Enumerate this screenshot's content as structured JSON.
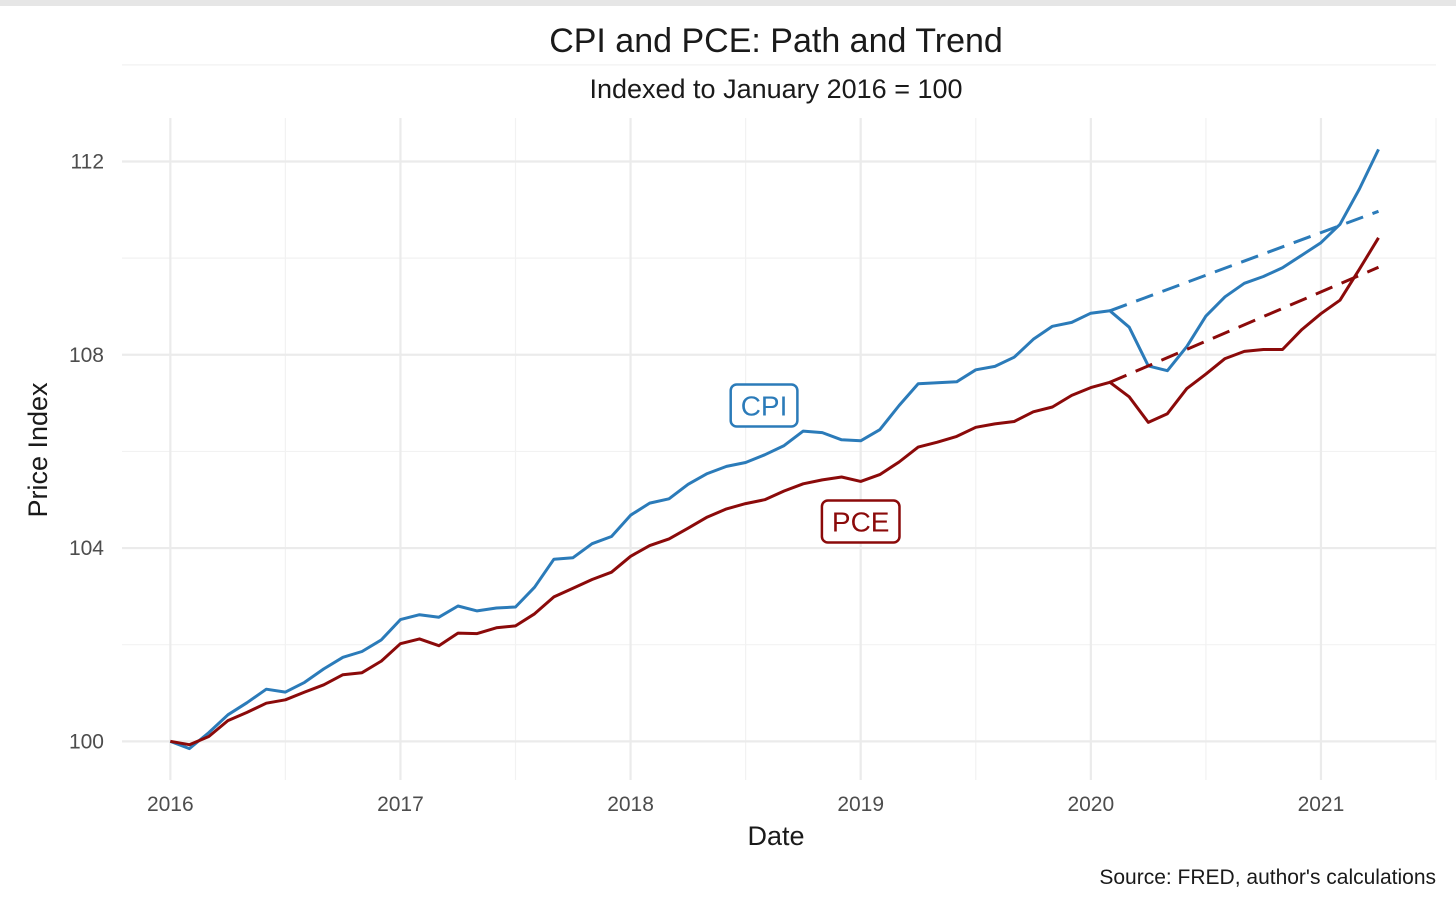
{
  "chart_data": {
    "type": "line",
    "title": "CPI and PCE: Path and Trend",
    "subtitle": "Indexed to January 2016 = 100",
    "xlabel": "Date",
    "ylabel": "Price Index",
    "caption": "Source: FRED, author's calculations",
    "xlim": [
      2015.79,
      2021.5
    ],
    "ylim": [
      99.2,
      112.9
    ],
    "x_ticks": [
      2016,
      2017,
      2018,
      2019,
      2020,
      2021
    ],
    "x_tick_labels": [
      "2016",
      "2017",
      "2018",
      "2019",
      "2020",
      "2021"
    ],
    "y_ticks": [
      100,
      104,
      108,
      112
    ],
    "y_tick_labels": [
      "100",
      "104",
      "108",
      "112"
    ],
    "grid": true,
    "series": [
      {
        "name": "CPI",
        "color": "#2b7bb9",
        "style": "solid",
        "label_at": [
          2018.58,
          106.95
        ],
        "x": [
          2016.0,
          2016.083,
          2016.167,
          2016.25,
          2016.333,
          2016.417,
          2016.5,
          2016.583,
          2016.667,
          2016.75,
          2016.833,
          2016.917,
          2017.0,
          2017.083,
          2017.167,
          2017.25,
          2017.333,
          2017.417,
          2017.5,
          2017.583,
          2017.667,
          2017.75,
          2017.833,
          2017.917,
          2018.0,
          2018.083,
          2018.167,
          2018.25,
          2018.333,
          2018.417,
          2018.5,
          2018.583,
          2018.667,
          2018.75,
          2018.833,
          2018.917,
          2019.0,
          2019.083,
          2019.167,
          2019.25,
          2019.333,
          2019.417,
          2019.5,
          2019.583,
          2019.667,
          2019.75,
          2019.833,
          2019.917,
          2020.0,
          2020.083,
          2020.167,
          2020.25,
          2020.333,
          2020.417,
          2020.5,
          2020.583,
          2020.667,
          2020.75,
          2020.833,
          2020.917,
          2021.0,
          2021.083,
          2021.167,
          2021.25
        ],
        "values": [
          100.0,
          99.85,
          100.18,
          100.55,
          100.8,
          101.08,
          101.02,
          101.22,
          101.5,
          101.74,
          101.86,
          102.1,
          102.52,
          102.62,
          102.57,
          102.8,
          102.7,
          102.76,
          102.78,
          103.19,
          103.77,
          103.8,
          104.09,
          104.24,
          104.68,
          104.93,
          105.02,
          105.32,
          105.54,
          105.69,
          105.77,
          105.93,
          106.12,
          106.42,
          106.39,
          106.24,
          106.22,
          106.45,
          106.95,
          107.4,
          107.42,
          107.44,
          107.69,
          107.76,
          107.95,
          108.32,
          108.59,
          108.67,
          108.86,
          108.91,
          108.57,
          107.77,
          107.67,
          108.17,
          108.8,
          109.2,
          109.48,
          109.62,
          109.8,
          110.06,
          110.32,
          110.7,
          111.43,
          112.25
        ]
      },
      {
        "name": "PCE",
        "color": "#8b0a0a",
        "style": "solid",
        "label_at": [
          2019.0,
          104.55
        ],
        "x": [
          2016.0,
          2016.083,
          2016.167,
          2016.25,
          2016.333,
          2016.417,
          2016.5,
          2016.583,
          2016.667,
          2016.75,
          2016.833,
          2016.917,
          2017.0,
          2017.083,
          2017.167,
          2017.25,
          2017.333,
          2017.417,
          2017.5,
          2017.583,
          2017.667,
          2017.75,
          2017.833,
          2017.917,
          2018.0,
          2018.083,
          2018.167,
          2018.25,
          2018.333,
          2018.417,
          2018.5,
          2018.583,
          2018.667,
          2018.75,
          2018.833,
          2018.917,
          2019.0,
          2019.083,
          2019.167,
          2019.25,
          2019.333,
          2019.417,
          2019.5,
          2019.583,
          2019.667,
          2019.75,
          2019.833,
          2019.917,
          2020.0,
          2020.083,
          2020.167,
          2020.25,
          2020.333,
          2020.417,
          2020.5,
          2020.583,
          2020.667,
          2020.75,
          2020.833,
          2020.917,
          2021.0,
          2021.083,
          2021.167,
          2021.25
        ],
        "values": [
          100.0,
          99.93,
          100.1,
          100.43,
          100.6,
          100.79,
          100.86,
          101.02,
          101.17,
          101.38,
          101.42,
          101.66,
          102.02,
          102.12,
          101.98,
          102.24,
          102.23,
          102.35,
          102.39,
          102.64,
          102.99,
          103.17,
          103.35,
          103.5,
          103.83,
          104.05,
          104.19,
          104.41,
          104.64,
          104.81,
          104.92,
          105.0,
          105.18,
          105.33,
          105.41,
          105.47,
          105.38,
          105.52,
          105.78,
          106.09,
          106.19,
          106.31,
          106.5,
          106.57,
          106.62,
          106.82,
          106.92,
          107.16,
          107.32,
          107.43,
          107.13,
          106.6,
          106.78,
          107.3,
          107.6,
          107.92,
          108.07,
          108.11,
          108.11,
          108.52,
          108.85,
          109.13,
          109.77,
          110.42
        ]
      },
      {
        "name": "CPI trend",
        "color": "#2b7bb9",
        "style": "dashed",
        "x": [
          2020.083,
          2021.25
        ],
        "values": [
          108.91,
          110.97
        ]
      },
      {
        "name": "PCE trend",
        "color": "#8b0a0a",
        "style": "dashed",
        "x": [
          2020.083,
          2021.25
        ],
        "values": [
          107.43,
          109.81
        ]
      }
    ]
  }
}
